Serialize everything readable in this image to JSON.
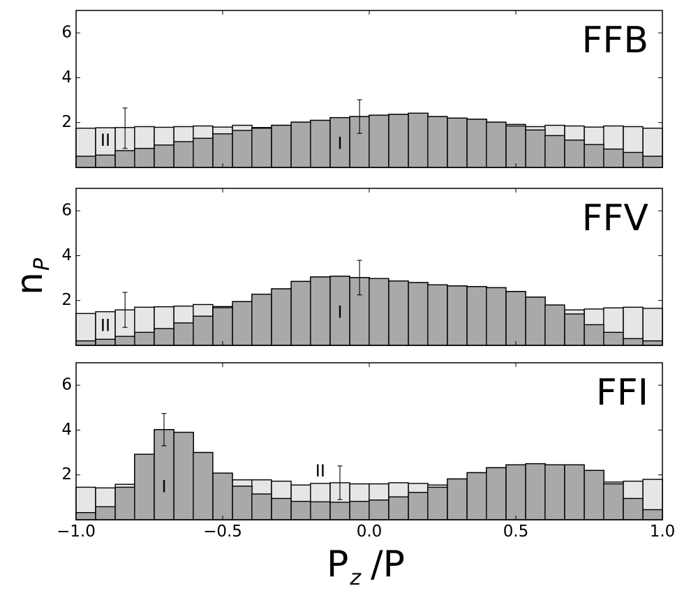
{
  "chart_data": {
    "type": "bar",
    "stacked_overlay": true,
    "grid": false,
    "xlabel": "P",
    "xlabel_sub": "z",
    "xlabel_suffix": "/P",
    "ylabel": "n",
    "ylabel_sub": "P",
    "x": [
      -0.967,
      -0.9,
      -0.833,
      -0.767,
      -0.7,
      -0.633,
      -0.567,
      -0.5,
      -0.433,
      -0.367,
      -0.3,
      -0.233,
      -0.167,
      -0.1,
      -0.033,
      0.033,
      0.1,
      0.167,
      0.233,
      0.3,
      0.367,
      0.433,
      0.5,
      0.567,
      0.633,
      0.7,
      0.767,
      0.833,
      0.9,
      0.967
    ],
    "xlim": [
      -1.0,
      1.0
    ],
    "ylim": [
      0,
      7
    ],
    "x_ticks": [
      -1.0,
      -0.5,
      0.0,
      0.5,
      1.0
    ],
    "x_tick_labels": [
      "−1.0",
      "−0.5",
      "0.0",
      "0.5",
      "1.0"
    ],
    "y_ticks": [
      2,
      4,
      6
    ],
    "y_tick_labels": [
      "2",
      "4",
      "6"
    ],
    "colors": {
      "I": "#a9a9a9",
      "II": "#e6e6e6",
      "edge": "#000000"
    },
    "panels": [
      {
        "title": "FFB",
        "series": [
          {
            "name": "I",
            "values": [
              0.5,
              0.55,
              0.75,
              0.85,
              1.0,
              1.15,
              1.3,
              1.5,
              1.65,
              1.75,
              1.88,
              2.02,
              2.1,
              2.22,
              2.27,
              2.33,
              2.37,
              2.42,
              2.27,
              2.2,
              2.15,
              2.02,
              1.85,
              1.67,
              1.42,
              1.22,
              1.02,
              0.82,
              0.67,
              0.5
            ]
          },
          {
            "name": "II",
            "values": [
              1.75,
              1.77,
              1.78,
              1.82,
              1.79,
              1.82,
              1.85,
              1.8,
              1.88,
              1.78,
              1.88,
              2.02,
              2.1,
              2.22,
              2.27,
              2.33,
              2.37,
              2.42,
              2.27,
              2.2,
              2.15,
              2.02,
              1.92,
              1.82,
              1.88,
              1.85,
              1.8,
              1.85,
              1.82,
              1.75
            ]
          }
        ],
        "errorbars": [
          {
            "x": -0.833,
            "y": 1.75,
            "err": 0.9
          },
          {
            "x": -0.033,
            "y": 2.27,
            "err": 0.75
          }
        ],
        "region_labels": [
          {
            "text": "II",
            "x": -0.9,
            "y": 1.18
          },
          {
            "text": "I",
            "x": -0.1,
            "y": 1.05
          }
        ]
      },
      {
        "title": "FFV",
        "series": [
          {
            "name": "I",
            "values": [
              0.2,
              0.27,
              0.4,
              0.58,
              0.75,
              1.0,
              1.3,
              1.68,
              1.95,
              2.28,
              2.52,
              2.85,
              3.05,
              3.08,
              3.02,
              2.98,
              2.87,
              2.8,
              2.7,
              2.65,
              2.62,
              2.57,
              2.4,
              2.15,
              1.8,
              1.4,
              0.92,
              0.58,
              0.3,
              0.2
            ]
          },
          {
            "name": "II",
            "values": [
              1.42,
              1.5,
              1.58,
              1.7,
              1.72,
              1.75,
              1.82,
              1.73,
              1.95,
              2.28,
              2.52,
              2.85,
              3.05,
              3.08,
              3.02,
              2.98,
              2.87,
              2.8,
              2.7,
              2.65,
              2.62,
              2.57,
              2.4,
              2.15,
              1.8,
              1.58,
              1.62,
              1.67,
              1.7,
              1.65
            ]
          }
        ],
        "errorbars": [
          {
            "x": -0.833,
            "y": 1.58,
            "err": 0.78
          },
          {
            "x": -0.033,
            "y": 3.02,
            "err": 0.77
          }
        ],
        "region_labels": [
          {
            "text": "II",
            "x": -0.9,
            "y": 0.85
          },
          {
            "text": "I",
            "x": -0.1,
            "y": 1.45
          }
        ]
      },
      {
        "title": "FFI",
        "series": [
          {
            "name": "I",
            "values": [
              0.32,
              0.58,
              1.45,
              2.92,
              4.02,
              3.9,
              3.0,
              2.08,
              1.5,
              1.15,
              0.95,
              0.82,
              0.8,
              0.78,
              0.82,
              0.88,
              1.02,
              1.22,
              1.45,
              1.82,
              2.1,
              2.32,
              2.45,
              2.5,
              2.45,
              2.45,
              2.2,
              1.6,
              0.95,
              0.45
            ]
          },
          {
            "name": "II",
            "values": [
              1.45,
              1.42,
              1.58,
              2.92,
              4.02,
              3.9,
              3.0,
              2.08,
              1.78,
              1.78,
              1.72,
              1.55,
              1.62,
              1.65,
              1.6,
              1.6,
              1.65,
              1.62,
              1.55,
              1.82,
              2.1,
              2.32,
              2.45,
              2.5,
              2.45,
              2.45,
              2.2,
              1.68,
              1.72,
              1.8
            ]
          }
        ],
        "errorbars": [
          {
            "x": -0.7,
            "y": 4.02,
            "err": 0.72
          },
          {
            "x": -0.1,
            "y": 1.65,
            "err": 0.75
          }
        ],
        "region_labels": [
          {
            "text": "I",
            "x": -0.7,
            "y": 1.45
          },
          {
            "text": "II",
            "x": -0.167,
            "y": 2.15
          }
        ]
      }
    ]
  }
}
